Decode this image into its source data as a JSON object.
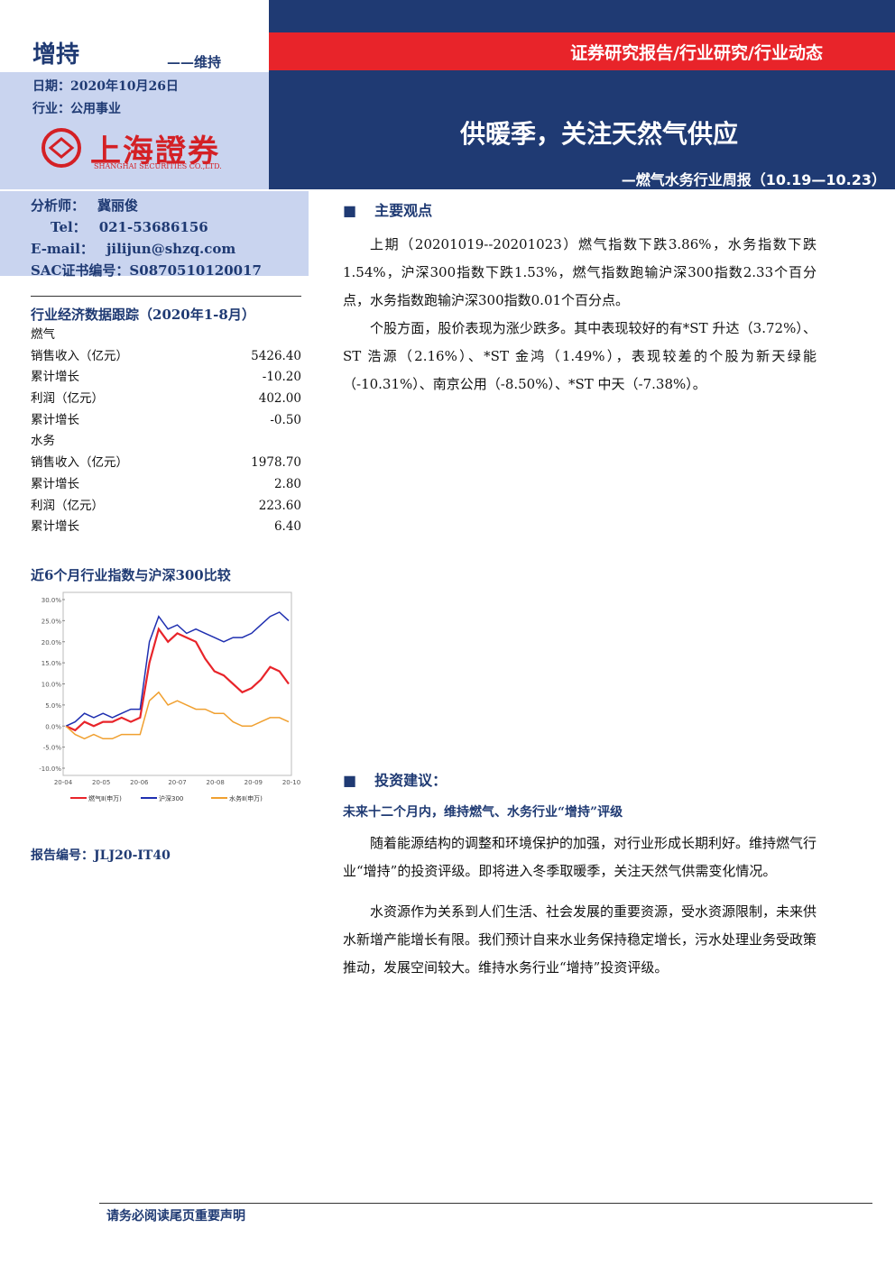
{
  "header": {
    "rating": "增持",
    "rating_change": "——维持",
    "date": "日期：2020年10月26日",
    "industry": "行业：公用事业",
    "logo_cn": "上海證券",
    "logo_en": "SHANGHAI SECURITIES CO.,LTD.",
    "category": "证券研究报告/行业研究/行业动态",
    "title": "供暖季，关注天然气供应",
    "subtitle": "—燃气水务行业周报（10.19—10.23）"
  },
  "analyst": {
    "rows": [
      [
        "分析师：",
        "冀丽俊"
      ],
      [
        "Tel：",
        "021-53686156"
      ],
      [
        "E-mail：",
        "jilijun@shzq.com"
      ],
      [
        "SAC证书编号：",
        "S0870510120017"
      ]
    ]
  },
  "table": {
    "title": "行业经济数据跟踪（2020年1-8月）",
    "rows": [
      [
        "燃气",
        ""
      ],
      [
        "销售收入（亿元）",
        "5426.40"
      ],
      [
        "累计增长",
        "-10.20"
      ],
      [
        "利润（亿元）",
        "402.00"
      ],
      [
        "累计增长",
        "-0.50"
      ],
      [
        "水务",
        ""
      ],
      [
        "销售收入（亿元）",
        "1978.70"
      ],
      [
        "累计增长",
        "2.80"
      ],
      [
        "利润（亿元）",
        "223.60"
      ],
      [
        "累计增长",
        "6.40"
      ]
    ]
  },
  "chart_data": {
    "type": "line",
    "title": "近6个月行业指数与沪深300比较",
    "xticks": [
      "20-04",
      "20-05",
      "20-06",
      "20-07",
      "20-08",
      "20-09",
      "20-10"
    ],
    "ylim": [
      -10,
      30
    ],
    "yticks": [
      {
        "value": -10,
        "label": "-10.0%"
      },
      {
        "value": -5,
        "label": "-5.0%"
      },
      {
        "value": 0,
        "label": "0.0%"
      },
      {
        "value": 5,
        "label": "5.0%"
      },
      {
        "value": 10,
        "label": "10.0%"
      },
      {
        "value": 15,
        "label": "15.0%"
      },
      {
        "value": 20,
        "label": "20.0%"
      },
      {
        "value": 25,
        "label": "25.0%"
      },
      {
        "value": 30,
        "label": "30.0%"
      }
    ],
    "series": [
      {
        "name": "燃气Ⅱ(申万)",
        "color": "#e8242a",
        "values": [
          0,
          -1,
          1,
          0,
          1,
          1,
          2,
          1,
          2,
          15,
          23,
          20,
          22,
          21,
          20,
          16,
          13,
          12,
          10,
          8,
          9,
          11,
          14,
          13,
          10
        ]
      },
      {
        "name": "沪深300",
        "color": "#1f2fb0",
        "values": [
          0,
          1,
          3,
          2,
          3,
          2,
          3,
          4,
          4,
          20,
          26,
          23,
          24,
          22,
          23,
          22,
          21,
          20,
          21,
          21,
          22,
          24,
          26,
          27,
          25
        ]
      },
      {
        "name": "水务Ⅱ(申万)",
        "color": "#f0a030",
        "values": [
          0,
          -2,
          -3,
          -2,
          -3,
          -3,
          -2,
          -2,
          -2,
          6,
          8,
          5,
          6,
          5,
          4,
          4,
          3,
          3,
          1,
          0,
          0,
          1,
          2,
          2,
          1
        ]
      }
    ]
  },
  "report_no": "报告编号：JLJ20-IT40",
  "sections": [
    {
      "heading": "主要观点",
      "paragraphs": [
        "上期（20201019--20201023）燃气指数下跌3.86%，水务指数下跌1.54%，沪深300指数下跌1.53%，燃气指数跑输沪深300指数2.33个百分点，水务指数跑输沪深300指数0.01个百分点。",
        "个股方面，股价表现为涨少跌多。其中表现较好的有*ST 升达（3.72%）、ST 浩源（2.16%）、*ST 金鸿（1.49%），表现较差的个股为新天绿能（-10.31%）、南京公用（-8.50%）、*ST 中天（-7.38%）。"
      ]
    },
    {
      "heading": "投资建议：",
      "subheading": "未来十二个月内，维持燃气、水务行业“增持”评级",
      "paragraphs": [
        "随着能源结构的调整和环境保护的加强，对行业形成长期利好。维持燃气行业“增持”的投资评级。即将进入冬季取暖季，关注天然气供需变化情况。",
        "水资源作为关系到人们生活、社会发展的重要资源，受水资源限制，未来供水新增产能增长有限。我们预计自来水业务保持稳定增长，污水处理业务受政策推动，发展空间较大。维持水务行业“增持”投资评级。"
      ]
    }
  ],
  "footer": "请务必阅读尾页重要声明"
}
